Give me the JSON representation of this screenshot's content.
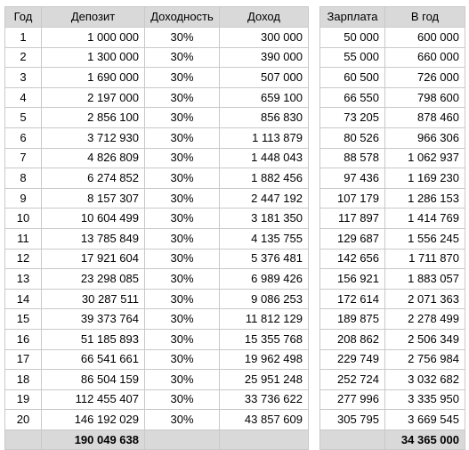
{
  "left": {
    "headers": [
      "Год",
      "Депозит",
      "Доходность",
      "Доход"
    ],
    "rows": [
      [
        "1",
        "1 000 000",
        "30%",
        "300 000"
      ],
      [
        "2",
        "1 300 000",
        "30%",
        "390 000"
      ],
      [
        "3",
        "1 690 000",
        "30%",
        "507 000"
      ],
      [
        "4",
        "2 197 000",
        "30%",
        "659 100"
      ],
      [
        "5",
        "2 856 100",
        "30%",
        "856 830"
      ],
      [
        "6",
        "3 712 930",
        "30%",
        "1 113 879"
      ],
      [
        "7",
        "4 826 809",
        "30%",
        "1 448 043"
      ],
      [
        "8",
        "6 274 852",
        "30%",
        "1 882 456"
      ],
      [
        "9",
        "8 157 307",
        "30%",
        "2 447 192"
      ],
      [
        "10",
        "10 604 499",
        "30%",
        "3 181 350"
      ],
      [
        "11",
        "13 785 849",
        "30%",
        "4 135 755"
      ],
      [
        "12",
        "17 921 604",
        "30%",
        "5 376 481"
      ],
      [
        "13",
        "23 298 085",
        "30%",
        "6 989 426"
      ],
      [
        "14",
        "30 287 511",
        "30%",
        "9 086 253"
      ],
      [
        "15",
        "39 373 764",
        "30%",
        "11 812 129"
      ],
      [
        "16",
        "51 185 893",
        "30%",
        "15 355 768"
      ],
      [
        "17",
        "66 541 661",
        "30%",
        "19 962 498"
      ],
      [
        "18",
        "86 504 159",
        "30%",
        "25 951 248"
      ],
      [
        "19",
        "112 455 407",
        "30%",
        "33 736 622"
      ],
      [
        "20",
        "146 192 029",
        "30%",
        "43 857 609"
      ]
    ],
    "total": [
      "",
      "190 049 638",
      "",
      ""
    ]
  },
  "right": {
    "headers": [
      "Зарплата",
      "В год"
    ],
    "rows": [
      [
        "50 000",
        "600 000"
      ],
      [
        "55 000",
        "660 000"
      ],
      [
        "60 500",
        "726 000"
      ],
      [
        "66 550",
        "798 600"
      ],
      [
        "73 205",
        "878 460"
      ],
      [
        "80 526",
        "966 306"
      ],
      [
        "88 578",
        "1 062 937"
      ],
      [
        "97 436",
        "1 169 230"
      ],
      [
        "107 179",
        "1 286 153"
      ],
      [
        "117 897",
        "1 414 769"
      ],
      [
        "129 687",
        "1 556 245"
      ],
      [
        "142 656",
        "1 711 870"
      ],
      [
        "156 921",
        "1 883 057"
      ],
      [
        "172 614",
        "2 071 363"
      ],
      [
        "189 875",
        "2 278 499"
      ],
      [
        "208 862",
        "2 506 349"
      ],
      [
        "229 749",
        "2 756 984"
      ],
      [
        "252 724",
        "3 032 682"
      ],
      [
        "277 996",
        "3 335 950"
      ],
      [
        "305 795",
        "3 669 545"
      ]
    ],
    "total": [
      "",
      "34 365 000"
    ]
  }
}
